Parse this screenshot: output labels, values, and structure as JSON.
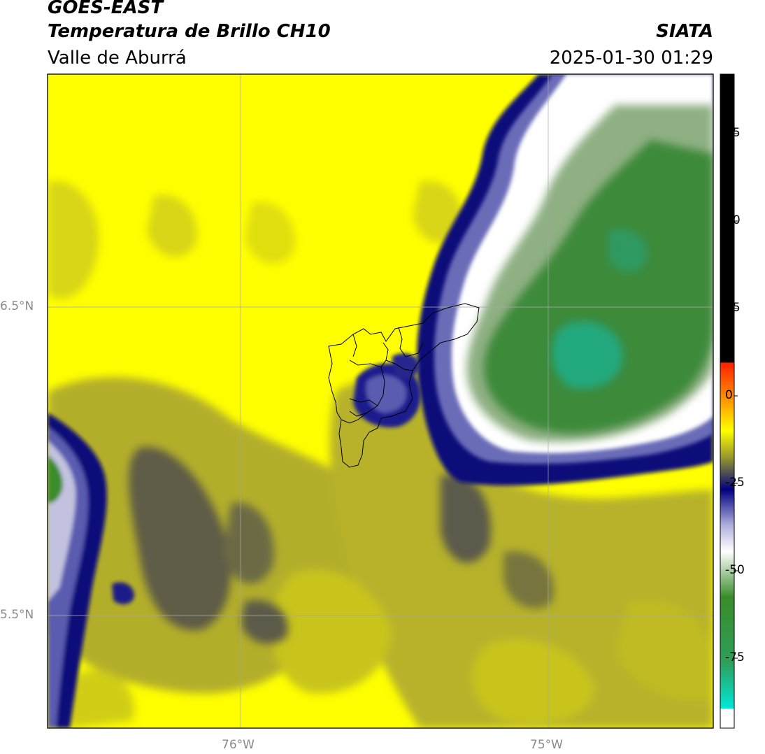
{
  "header": {
    "title_line1": "GOES-EAST",
    "title_line2": "Temperatura de Brillo CH10",
    "title_line3": "Valle de Aburrá",
    "brand": "SIATA",
    "timestamp": "2025-01-30 01:29"
  },
  "axes": {
    "lat_labels": [
      "6.5°N",
      "5.5°N"
    ],
    "lon_labels": [
      "76°W",
      "75°W"
    ],
    "gridlines": true
  },
  "colorbar": {
    "ticks": [
      "75",
      "50",
      "25",
      "0",
      "-25",
      "-50",
      "-75"
    ],
    "tick_values": [
      75,
      50,
      25,
      0,
      -25,
      -50,
      -75
    ],
    "range": [
      -95,
      92
    ],
    "colors": {
      "warm_top": "#000000",
      "red": "#ff2200",
      "orange": "#ff9900",
      "yellow": "#ffff00",
      "olive": "#8c8c32",
      "navy": "#000080",
      "lavender": "#b0b0dc",
      "white": "#ffffff",
      "green": "#3a8c2a",
      "cyan": "#00e8d8"
    }
  },
  "map_colors": {
    "background": "#ffff00",
    "olive_light": "#d8d614",
    "olive_mid": "#a7a32e",
    "olive_dark": "#5c5a48",
    "navy": "#0b0b7a",
    "blue_mid": "#5052a8",
    "lavender": "#b9b9db",
    "white": "#ffffff",
    "green_light": "#7ea86a",
    "green": "#3f8b38",
    "teal": "#1fae7c",
    "gridline": "#b0b0b0",
    "boundary": "#000000"
  }
}
